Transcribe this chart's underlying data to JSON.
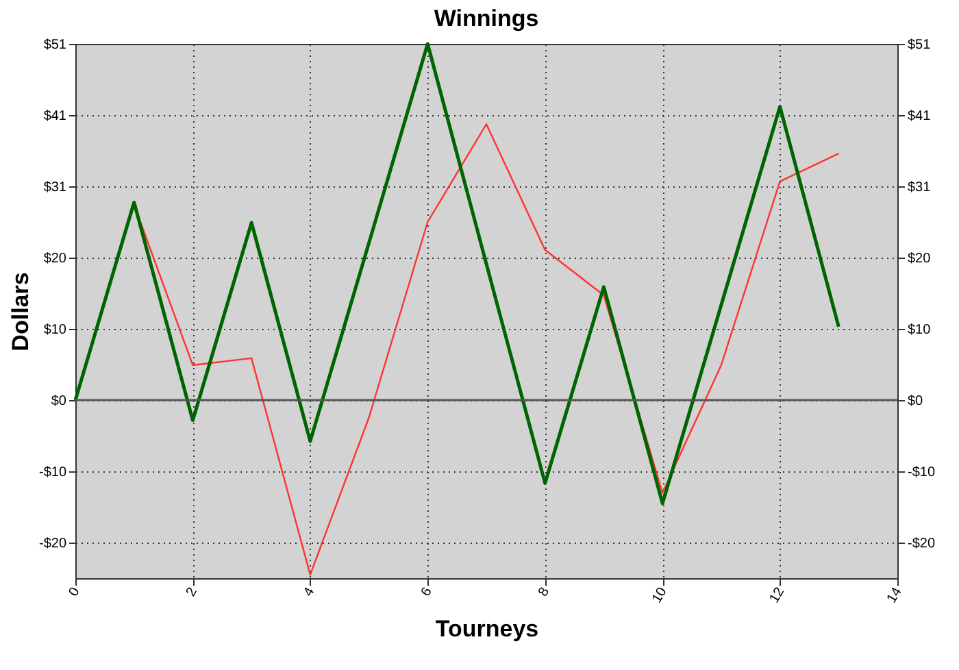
{
  "chart_data": {
    "type": "line",
    "title": "Winnings",
    "xlabel": "Tourneys",
    "ylabel": "Dollars",
    "x": [
      0,
      1,
      2,
      3,
      4,
      5,
      6,
      7,
      8,
      9,
      10,
      11,
      12,
      13
    ],
    "series": [
      {
        "color": "#ff3333",
        "values": [
          0,
          28,
          5,
          6,
          -25,
          -2.5,
          25.5,
          39.5,
          21.5,
          15,
          -13.3,
          5,
          31.3,
          35.3
        ]
      },
      {
        "color": "#006400",
        "values": [
          0,
          28.3,
          -2.9,
          25.4,
          -5.9,
          22.5,
          51,
          19.5,
          -11.9,
          16.2,
          -14.8,
          13.6,
          42,
          10.5
        ]
      }
    ],
    "xlim": [
      0,
      14
    ],
    "xticks": [
      0,
      2,
      4,
      6,
      8,
      10,
      12,
      14
    ],
    "ylim": [
      -25.5,
      51
    ],
    "yticks": [
      {
        "value": -20.4,
        "label": "-$20"
      },
      {
        "value": -10.2,
        "label": "-$10"
      },
      {
        "value": 0,
        "label": "$0"
      },
      {
        "value": 10.2,
        "label": "$10"
      },
      {
        "value": 20.4,
        "label": "$20"
      },
      {
        "value": 30.6,
        "label": "$31"
      },
      {
        "value": 40.8,
        "label": "$41"
      },
      {
        "value": 51,
        "label": "$51"
      }
    ],
    "y2lim": [
      -25.5,
      51
    ],
    "y2ticks": [
      {
        "value": -20.4,
        "label": "-$20"
      },
      {
        "value": -10.2,
        "label": "-$10"
      },
      {
        "value": 0,
        "label": "$0"
      },
      {
        "value": 10.2,
        "label": "$10"
      },
      {
        "value": 20.4,
        "label": "$20"
      },
      {
        "value": 30.6,
        "label": "$31"
      },
      {
        "value": 40.8,
        "label": "$41"
      },
      {
        "value": 51,
        "label": "$51"
      }
    ],
    "ref_lines": [
      {
        "axis": "y",
        "value": 0,
        "color": "#555555"
      }
    ],
    "grid": true,
    "marker": "none",
    "line_style": "solid"
  }
}
